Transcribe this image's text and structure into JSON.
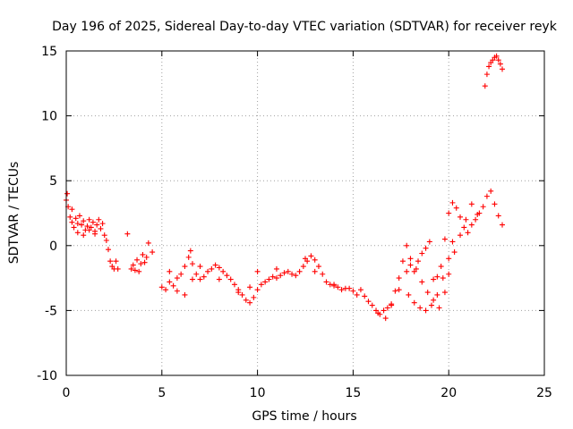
{
  "chart_data": {
    "type": "scatter",
    "title": "Day 196 of 2025, Sidereal Day-to-day VTEC variation (SDTVAR) for receiver reyk",
    "xlabel": "GPS time / hours",
    "ylabel": "SDTVAR / TECUs",
    "xlim": [
      0,
      25
    ],
    "ylim": [
      -10,
      15
    ],
    "xticks": [
      "0",
      "5",
      "10",
      "15",
      "20",
      "25"
    ],
    "yticks": [
      "-10",
      "-5",
      "0",
      "5",
      "10",
      "15"
    ],
    "grid": true,
    "marker": "plus",
    "color": "#ff0000",
    "series": [
      {
        "name": "SDTVAR",
        "x": [
          0.0,
          0.1,
          0.2,
          0.3,
          0.4,
          0.5,
          0.6,
          0.7,
          0.8,
          0.9,
          1.0,
          1.1,
          1.2,
          1.3,
          1.4,
          1.5,
          1.6,
          1.7,
          1.8,
          1.9,
          2.0,
          2.1,
          2.2,
          2.3,
          2.4,
          2.5,
          2.6,
          2.7,
          3.2,
          3.4,
          3.5,
          3.6,
          3.7,
          3.8,
          3.9,
          4.0,
          4.1,
          4.2,
          4.3,
          4.5,
          5.0,
          5.2,
          5.4,
          5.6,
          5.8,
          6.0,
          6.2,
          6.4,
          6.5,
          6.6,
          6.8,
          7.0,
          7.2,
          7.4,
          7.6,
          7.8,
          8.0,
          8.2,
          8.4,
          8.6,
          8.8,
          9.0,
          9.2,
          9.4,
          9.6,
          9.8,
          10.0,
          10.2,
          10.4,
          10.6,
          10.8,
          11.0,
          11.2,
          11.4,
          11.6,
          11.8,
          12.0,
          12.2,
          12.4,
          12.6,
          12.8,
          13.0,
          13.2,
          13.4,
          13.6,
          13.8,
          14.0,
          14.2,
          14.4,
          14.6,
          14.8,
          15.0,
          15.2,
          15.4,
          15.6,
          15.8,
          16.0,
          16.2,
          16.4,
          16.6,
          16.8,
          17.0,
          17.2,
          17.4,
          17.6,
          17.8,
          18.0,
          18.2,
          18.4,
          18.6,
          18.8,
          19.0,
          19.2,
          19.4,
          19.6,
          19.8,
          20.0,
          20.2,
          20.4,
          20.6,
          20.8,
          21.0,
          21.2,
          21.4,
          21.6,
          21.8,
          22.0,
          22.2,
          22.4,
          22.6,
          22.8,
          21.9,
          22.0,
          22.1,
          22.2,
          22.3,
          22.4,
          22.5,
          22.6,
          22.7,
          22.8,
          0.05,
          0.3,
          0.6,
          0.9,
          1.2,
          1.5,
          5.4,
          5.8,
          6.2,
          6.6,
          7.0,
          8.0,
          9.0,
          9.6,
          10.0,
          11.0,
          12.5,
          13.0,
          14.0,
          16.3,
          16.7,
          17.0,
          17.4,
          17.8,
          18.0,
          18.3,
          18.6,
          18.9,
          19.2,
          19.5,
          19.8,
          20.0,
          20.3,
          20.6,
          20.9,
          21.2,
          21.5,
          17.9,
          18.2,
          18.5,
          18.8,
          19.1,
          19.4,
          19.7,
          20.0,
          20.2
        ],
        "values": [
          3.5,
          3.0,
          2.2,
          1.8,
          1.4,
          2.1,
          1.7,
          2.3,
          1.6,
          1.9,
          1.2,
          1.5,
          2.0,
          1.4,
          1.8,
          1.1,
          1.6,
          2.0,
          1.3,
          1.7,
          0.8,
          0.4,
          -0.3,
          -1.2,
          -1.6,
          -1.8,
          -1.2,
          -1.8,
          0.9,
          -1.8,
          -1.5,
          -1.9,
          -1.1,
          -2.0,
          -1.4,
          -0.7,
          -1.3,
          -0.9,
          0.2,
          -0.5,
          -3.2,
          -3.4,
          -2.8,
          -3.1,
          -2.5,
          -2.2,
          -1.6,
          -0.9,
          -0.4,
          -1.4,
          -2.2,
          -2.6,
          -2.4,
          -2.0,
          -1.8,
          -1.5,
          -1.7,
          -2.0,
          -2.3,
          -2.6,
          -3.0,
          -3.4,
          -3.8,
          -4.2,
          -4.4,
          -4.0,
          -3.4,
          -3.0,
          -2.8,
          -2.6,
          -2.4,
          -2.5,
          -2.3,
          -2.1,
          -2.0,
          -2.2,
          -2.3,
          -2.0,
          -1.6,
          -1.2,
          -0.8,
          -1.1,
          -1.6,
          -2.2,
          -2.8,
          -3.0,
          -3.1,
          -3.2,
          -3.4,
          -3.3,
          -3.3,
          -3.5,
          -3.8,
          -3.4,
          -3.9,
          -4.3,
          -4.6,
          -5.0,
          -5.3,
          -5.0,
          -4.8,
          -4.5,
          -3.5,
          -2.5,
          -1.2,
          0.0,
          -1.5,
          -2.0,
          -1.2,
          -0.6,
          -0.2,
          0.3,
          -2.6,
          -2.4,
          -1.6,
          0.5,
          2.5,
          3.3,
          2.9,
          2.2,
          1.4,
          1.0,
          1.6,
          2.0,
          2.5,
          3.0,
          3.8,
          4.2,
          3.2,
          2.3,
          1.6,
          12.3,
          13.2,
          13.8,
          14.1,
          14.3,
          14.5,
          14.6,
          14.3,
          14.0,
          13.6,
          4.0,
          2.8,
          1.0,
          0.8,
          1.2,
          0.9,
          -2.0,
          -3.5,
          -3.8,
          -2.6,
          -1.6,
          -2.6,
          -3.6,
          -3.2,
          -2.0,
          -1.8,
          -1.0,
          -2.0,
          -3.0,
          -5.2,
          -5.6,
          -4.6,
          -3.4,
          -2.0,
          -1.0,
          -1.8,
          -2.8,
          -3.6,
          -4.2,
          -4.8,
          -3.6,
          -2.2,
          -0.5,
          0.8,
          2.0,
          3.2,
          2.4,
          -3.8,
          -4.4,
          -4.8,
          -5.0,
          -4.6,
          -3.8,
          -2.5,
          -1.0,
          0.3
        ]
      }
    ]
  }
}
